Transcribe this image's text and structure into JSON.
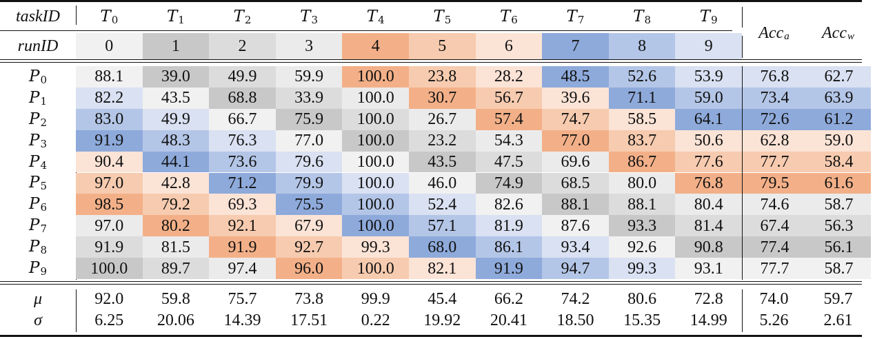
{
  "header": {
    "task_label": "taskID",
    "run_label": "runID",
    "task_symbol": "T",
    "tasks": [
      "0",
      "1",
      "2",
      "3",
      "4",
      "5",
      "6",
      "7",
      "8",
      "9"
    ],
    "runs": [
      "0",
      "1",
      "2",
      "3",
      "4",
      "5",
      "6",
      "7",
      "8",
      "9"
    ],
    "acc_a_base": "Acc",
    "acc_a_sub": "a",
    "acc_w_base": "Acc",
    "acc_w_sub": "w"
  },
  "run_colors": [
    "#f1f1f1",
    "#c8c8c8",
    "#dcdcdc",
    "#ebebeb",
    "#f3b088",
    "#f7cbaf",
    "#fbe3d6",
    "#8eaadb",
    "#b4c6e7",
    "#d9e1f2"
  ],
  "rows": [
    {
      "label_base": "P",
      "label_sub": "0",
      "values": [
        "88.1",
        "39.0",
        "49.9",
        "59.9",
        "100.0",
        "23.8",
        "28.2",
        "48.5",
        "52.6",
        "53.9"
      ],
      "acc_a": "76.8",
      "acc_w": "62.7"
    },
    {
      "label_base": "P",
      "label_sub": "1",
      "values": [
        "82.2",
        "43.5",
        "68.8",
        "33.9",
        "100.0",
        "30.7",
        "56.7",
        "39.6",
        "71.1",
        "59.0"
      ],
      "acc_a": "73.4",
      "acc_w": "63.9"
    },
    {
      "label_base": "P",
      "label_sub": "2",
      "values": [
        "83.0",
        "49.9",
        "66.7",
        "75.9",
        "100.0",
        "26.7",
        "57.4",
        "74.7",
        "58.5",
        "64.1"
      ],
      "acc_a": "72.6",
      "acc_w": "61.2"
    },
    {
      "label_base": "P",
      "label_sub": "3",
      "values": [
        "91.9",
        "48.3",
        "76.3",
        "77.0",
        "100.0",
        "23.2",
        "54.3",
        "77.0",
        "83.7",
        "50.6"
      ],
      "acc_a": "62.8",
      "acc_w": "59.0"
    },
    {
      "label_base": "P",
      "label_sub": "4",
      "values": [
        "90.4",
        "44.1",
        "73.6",
        "79.6",
        "100.0",
        "43.5",
        "47.5",
        "69.6",
        "86.7",
        "77.6"
      ],
      "acc_a": "77.7",
      "acc_w": "58.4"
    },
    {
      "label_base": "P",
      "label_sub": "5",
      "values": [
        "97.0",
        "42.8",
        "71.2",
        "79.9",
        "100.0",
        "46.0",
        "74.9",
        "68.5",
        "80.0",
        "76.8"
      ],
      "acc_a": "79.5",
      "acc_w": "61.6"
    },
    {
      "label_base": "P",
      "label_sub": "6",
      "values": [
        "98.5",
        "79.2",
        "69.3",
        "75.5",
        "100.0",
        "52.4",
        "82.6",
        "88.1",
        "88.1",
        "80.4"
      ],
      "acc_a": "74.6",
      "acc_w": "58.7"
    },
    {
      "label_base": "P",
      "label_sub": "7",
      "values": [
        "97.0",
        "80.2",
        "92.1",
        "67.9",
        "100.0",
        "57.1",
        "81.9",
        "87.6",
        "93.3",
        "81.4"
      ],
      "acc_a": "67.4",
      "acc_w": "56.3"
    },
    {
      "label_base": "P",
      "label_sub": "8",
      "values": [
        "91.9",
        "81.5",
        "91.9",
        "92.7",
        "99.3",
        "68.0",
        "86.1",
        "93.4",
        "92.6",
        "90.8"
      ],
      "acc_a": "77.4",
      "acc_w": "56.1"
    },
    {
      "label_base": "P",
      "label_sub": "9",
      "values": [
        "100.0",
        "89.7",
        "97.4",
        "96.0",
        "100.0",
        "82.1",
        "91.9",
        "94.7",
        "99.3",
        "93.1"
      ],
      "acc_a": "77.7",
      "acc_w": "58.7"
    }
  ],
  "stats": {
    "mean": {
      "label": "μ",
      "values": [
        "92.0",
        "59.8",
        "75.7",
        "73.8",
        "99.9",
        "45.4",
        "66.2",
        "74.2",
        "80.6",
        "72.8"
      ],
      "acc_a": "74.0",
      "acc_w": "59.7"
    },
    "std": {
      "label": "σ",
      "values": [
        "6.25",
        "20.06",
        "14.39",
        "17.51",
        "0.22",
        "19.92",
        "20.41",
        "18.50",
        "15.35",
        "14.99"
      ],
      "acc_a": "5.26",
      "acc_w": "2.61"
    }
  }
}
